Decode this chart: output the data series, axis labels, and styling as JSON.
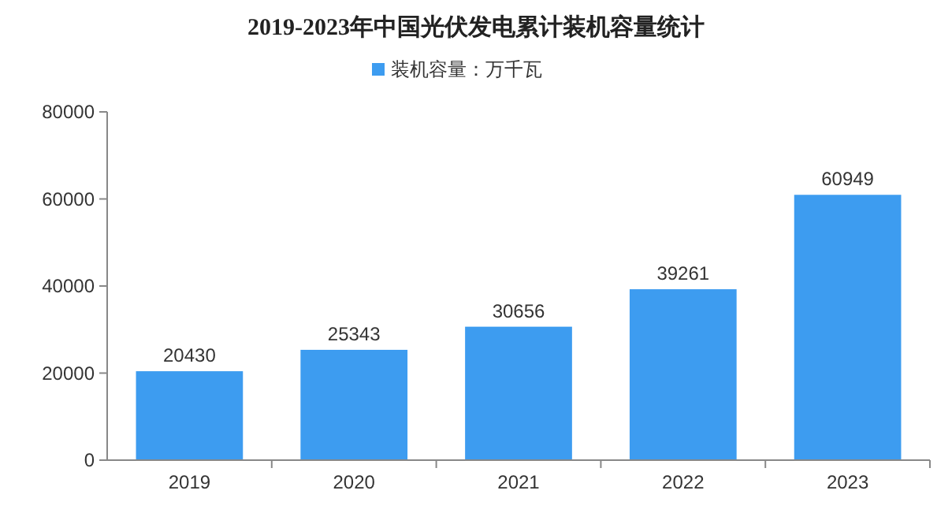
{
  "chart_data": {
    "type": "bar",
    "title": "2019-2023年中国光伏发电累计装机容量统计",
    "categories": [
      "2019",
      "2020",
      "2021",
      "2022",
      "2023"
    ],
    "series": [
      {
        "name": "装机容量：万千瓦",
        "color": "#3d9cf0",
        "values": [
          20430,
          25343,
          30656,
          39261,
          60949
        ]
      }
    ],
    "ylim": [
      0,
      80000
    ],
    "yticks": [
      0,
      20000,
      40000,
      60000,
      80000
    ],
    "data_labels": true,
    "legend": "top",
    "grid": false
  }
}
